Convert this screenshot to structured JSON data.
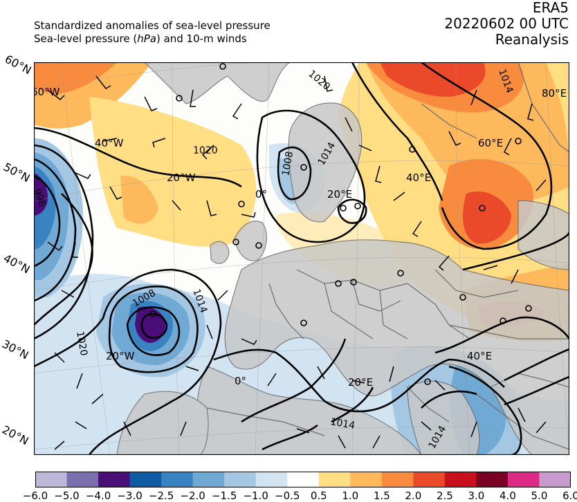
{
  "header": {
    "line1": "Standardized anomalies of sea-level pressure",
    "line2_pre": "Sea-level pressure (",
    "line2_unit": "hPa",
    "line2_post": ") and 10-m winds",
    "right1": "ERA5",
    "right2": "20220602 00 UTC",
    "right3": "Reanalysis"
  },
  "map": {
    "lat_labels": [
      "60°N",
      "50°N",
      "40°N",
      "30°N",
      "20°N"
    ],
    "lon_labels": [
      "60°W",
      "40°W",
      "20°W",
      "0°",
      "20°E",
      "40°E",
      "60°E",
      "80°E",
      "20°W",
      "0°",
      "20°E",
      "40°E"
    ],
    "isobar_labels": [
      "1020",
      "1014",
      "1020",
      "996",
      "1014",
      "1008",
      "1014",
      "1008",
      "1014",
      "1020",
      "1014"
    ],
    "colors": {
      "ocean": "#fdfdfc",
      "land": "#c8c8c8",
      "border": "#6d6d6d",
      "contour": "#000000"
    }
  },
  "colorbar": {
    "ticks": [
      "−6.0",
      "−5.0",
      "−4.0",
      "−3.0",
      "−2.5",
      "−2.0",
      "−1.5",
      "−1.0",
      "−0.5",
      "0.5",
      "1.0",
      "1.5",
      "2.0",
      "2.5",
      "3.0",
      "4.0",
      "5.0",
      "6.0"
    ],
    "colors": [
      "#bdb7da",
      "#7c6fb0",
      "#4a0e78",
      "#0f5aa5",
      "#3a83c2",
      "#6fa9d4",
      "#a4c8e4",
      "#d2e3f2",
      "#fdfdfc",
      "#ffde84",
      "#fdb95c",
      "#f98b3e",
      "#eb4a2a",
      "#c8101c",
      "#7a0025",
      "#dd2a86",
      "#c99ad0"
    ]
  }
}
